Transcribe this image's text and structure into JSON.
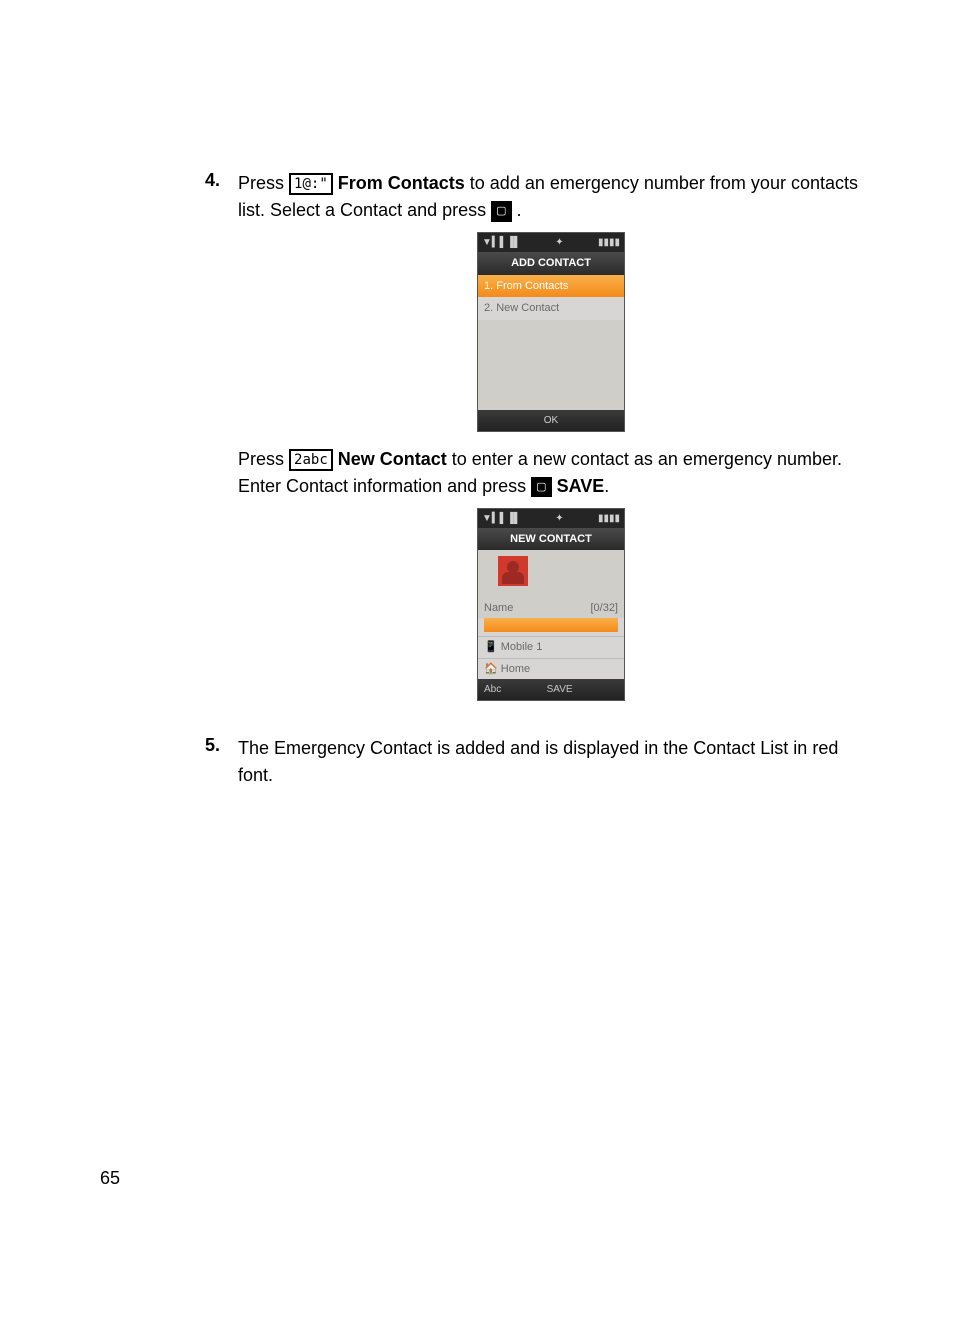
{
  "steps": {
    "s4": {
      "number": "4.",
      "press": "Press",
      "key1_label": "1@:\"",
      "from_contacts": "From Contacts",
      "text1_rest": " to add an emergency number from your contacts list. Select a Contact and press ",
      "press2": "Press",
      "key2_label": "2abc",
      "new_contact": "New Contact",
      "text2_rest": " to enter a new contact as an emergency number. Enter Contact information and press ",
      "save": "SAVE"
    },
    "s5": {
      "number": "5.",
      "text": "The Emergency Contact is added and is displayed in the Contact List in red font."
    }
  },
  "screen1": {
    "status_left": "▼▍▌▐▌",
    "status_center": "✦",
    "status_right": "▮▮▮▮",
    "title": "ADD CONTACT",
    "item1": "1. From Contacts",
    "item2": "2. New Contact",
    "softkey_center": "OK"
  },
  "screen2": {
    "status_left": "▼▍▌▐▌",
    "status_center": "✦",
    "status_right": "▮▮▮▮",
    "title": "NEW CONTACT",
    "name_label": "Name",
    "name_counter": "[0/32]",
    "mobile1": "📱 Mobile 1",
    "home": "🏠 Home",
    "soft_left": "Abc",
    "soft_center": "SAVE",
    "soft_right": ""
  },
  "page_number": "65",
  "center_key_glyph": "▢"
}
